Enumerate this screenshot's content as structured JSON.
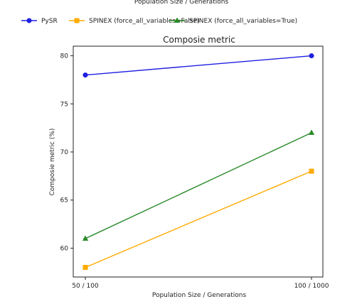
{
  "chart_data": {
    "type": "line",
    "top_caption": "Population Size / Generations",
    "title": "Composie metric",
    "xlabel": "Population Size / Generations",
    "ylabel": "Composie metric (%)",
    "categories": [
      "50 / 100",
      "100 / 1000"
    ],
    "ylim": [
      57,
      81
    ],
    "yticks": [
      60,
      65,
      70,
      75,
      80
    ],
    "grid": false,
    "legend_position": "top, above plot",
    "series": [
      {
        "name": "PySR",
        "values": [
          78,
          80
        ],
        "color": "#1f1fe0",
        "marker": "circle"
      },
      {
        "name": "SPINEX (force_all_variables=False)",
        "values": [
          58,
          68
        ],
        "color": "#ffaa00",
        "marker": "square"
      },
      {
        "name": "SPINEX (force_all_variables=True)",
        "values": [
          61,
          72
        ],
        "color": "#2a8a2a",
        "marker": "triangle"
      }
    ]
  }
}
